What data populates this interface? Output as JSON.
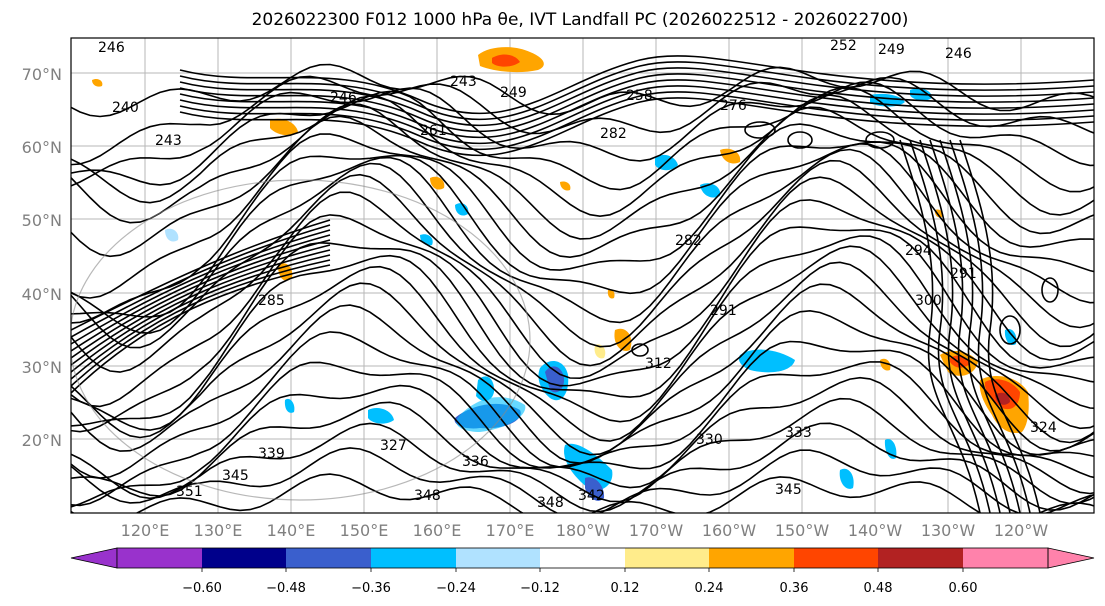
{
  "title": "2026022300 F012 1000 hPa θe, IVT Landfall PC (2026022512 - 2026022700)",
  "lat_labels": [
    "70°N",
    "60°N",
    "50°N",
    "40°N",
    "30°N",
    "20°N"
  ],
  "lon_labels": [
    "120°E",
    "130°E",
    "140°E",
    "150°E",
    "160°E",
    "170°E",
    "180°W",
    "170°W",
    "160°W",
    "150°W",
    "140°W",
    "130°W",
    "120°W"
  ],
  "contour_labels": [
    "246",
    "240",
    "243",
    "243",
    "249",
    "246",
    "252",
    "249",
    "246",
    "258",
    "276",
    "282",
    "261",
    "282",
    "294",
    "291",
    "291",
    "300",
    "312",
    "285",
    "327",
    "330",
    "333",
    "336",
    "339",
    "345",
    "348",
    "345",
    "348",
    "351",
    "324",
    "342"
  ],
  "colorbar": {
    "colors": [
      "#9932CC",
      "#00008B",
      "#3A5FCD",
      "#00BFFF",
      "#B0E2FF",
      "#FFFFFF",
      "#FFEC8B",
      "#FFA500",
      "#FF4500",
      "#B22222",
      "#FF82AB"
    ],
    "ticks": [
      "−0.60",
      "−0.48",
      "−0.36",
      "−0.24",
      "−0.12",
      "0.12",
      "0.24",
      "0.36",
      "0.48",
      "0.60"
    ]
  },
  "map": {
    "lat_range": [
      10,
      75
    ],
    "lon_range": [
      110,
      250
    ],
    "grid": true,
    "coastlines": true
  }
}
